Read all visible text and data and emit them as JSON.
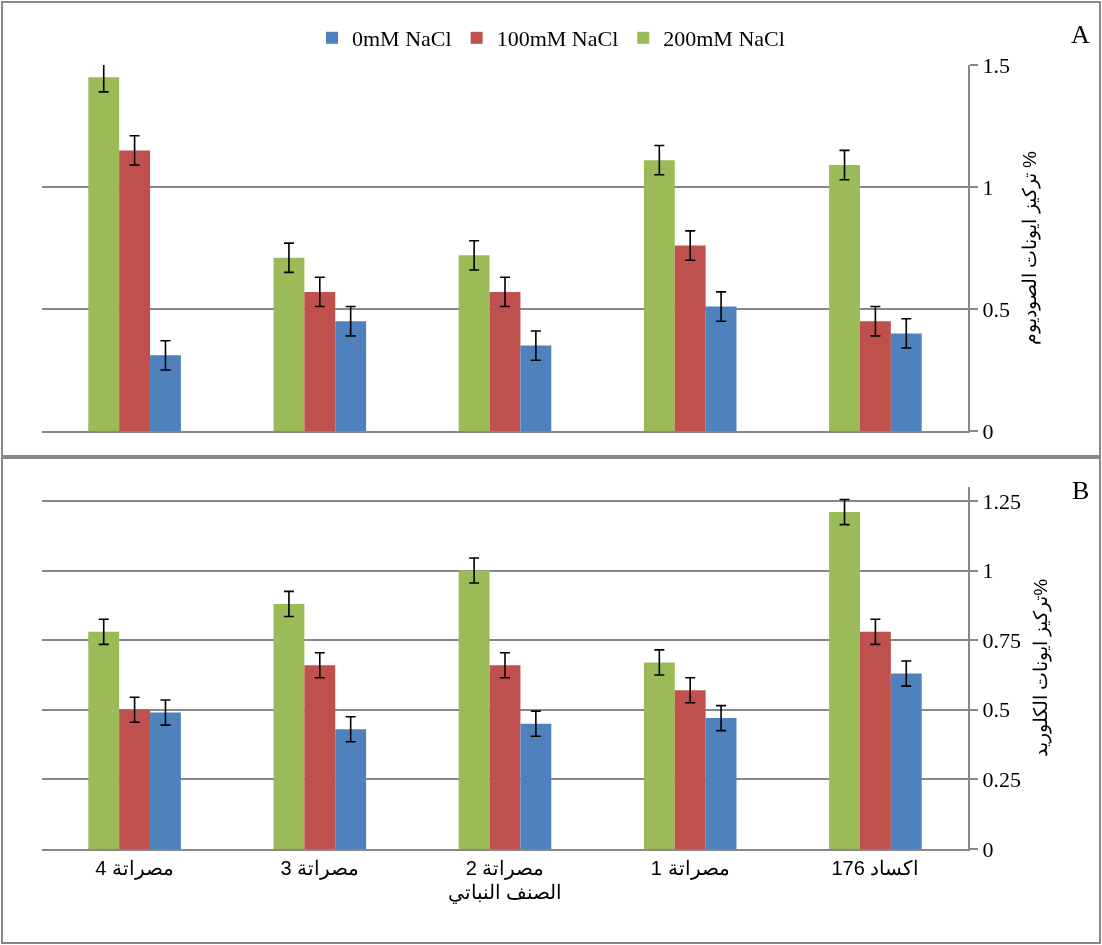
{
  "chart_data": [
    {
      "type": "bar",
      "annotations": [
        "A"
      ],
      "ylabel": "تركيز ايونات الصوديوم %",
      "categories": [
        null,
        null,
        null,
        null,
        null
      ],
      "ylim": [
        0,
        1.5
      ],
      "yticks": [
        0,
        0.5,
        1,
        1.5
      ],
      "grid": "y",
      "legend": "top",
      "tick_labels": "y",
      "series": [
        {
          "name": "0mM NaCl",
          "color": "#4f81bd",
          "values": [
            0.31,
            0.45,
            0.35,
            0.51,
            0.4
          ],
          "errors": [
            0.06,
            0.06,
            0.06,
            0.06,
            0.06
          ]
        },
        {
          "name": "100mM NaCl",
          "color": "#c0504d",
          "values": [
            1.15,
            0.57,
            0.57,
            0.76,
            0.45
          ],
          "errors": [
            0.06,
            0.06,
            0.06,
            0.06,
            0.06
          ]
        },
        {
          "name": "200mM NaCl",
          "color": "#9bbb59",
          "values": [
            1.45,
            0.71,
            0.72,
            1.11,
            1.09
          ],
          "errors": [
            0.06,
            0.06,
            0.06,
            0.06,
            0.06
          ]
        }
      ]
    },
    {
      "type": "bar",
      "annotations": [
        "B"
      ],
      "ylabel": "تركيز ايونات الكلوريد%",
      "xlabel": "الصنف النباتي",
      "categories": [
        "مصراتة 4",
        "مصراتة 3",
        "مصراتة 2",
        "مصراتة 1",
        "اكساد 176"
      ],
      "ylim": [
        0,
        1.3
      ],
      "yticks": [
        0,
        0.25,
        0.5,
        0.75,
        1,
        1.25
      ],
      "grid": "y",
      "series": [
        {
          "color": "#4f81bd",
          "values": [
            0.49,
            0.43,
            0.45,
            0.47,
            0.63
          ],
          "errors": [
            0.045,
            0.045,
            0.045,
            0.045,
            0.045
          ]
        },
        {
          "color": "#c0504d",
          "values": [
            0.5,
            0.66,
            0.66,
            0.57,
            0.78
          ],
          "errors": [
            0.045,
            0.045,
            0.045,
            0.045,
            0.045
          ]
        },
        {
          "color": "#9bbb59",
          "values": [
            0.78,
            0.88,
            1.0,
            0.67,
            1.21
          ],
          "errors": [
            0.045,
            0.045,
            0.045,
            0.045,
            0.045
          ]
        }
      ]
    }
  ]
}
